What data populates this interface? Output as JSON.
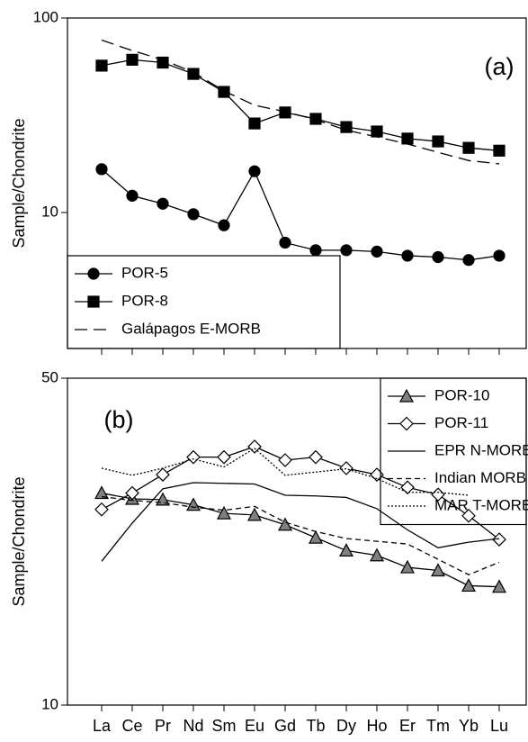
{
  "chart_data": [
    {
      "type": "line",
      "panel_label": "(a)",
      "y_label": "Sample/Chondrite",
      "yscale": "log",
      "categories": [
        null,
        null,
        null,
        null,
        null,
        null,
        null,
        null,
        null,
        null,
        null,
        null,
        null,
        null
      ],
      "ylim": [
        2,
        100
      ],
      "yticks": [
        10,
        100
      ],
      "legend": "lower left",
      "series": [
        {
          "name": "POR-5",
          "color": "#000000",
          "marker": "circle",
          "line": "solid",
          "values": [
            16.7,
            12.2,
            11.1,
            9.8,
            8.6,
            16.3,
            7.0,
            6.4,
            6.4,
            6.3,
            6.0,
            5.9,
            5.7,
            6.0
          ]
        },
        {
          "name": "POR-8",
          "color": "#000000",
          "marker": "square",
          "line": "solid",
          "values": [
            56.9,
            61,
            59,
            51.6,
            41.7,
            28.7,
            32.7,
            30.3,
            27.5,
            26.1,
            24,
            23.2,
            21.5,
            20.8
          ]
        },
        {
          "name": "Galápagos E-MORB",
          "color": "#000000",
          "marker": "none",
          "line": "longdash",
          "values": [
            77,
            68,
            61,
            52.6,
            42.2,
            35.6,
            33,
            30,
            26.5,
            24.5,
            22.5,
            20.4,
            18.5,
            17.8
          ]
        }
      ]
    },
    {
      "type": "line",
      "panel_label": "(b)",
      "y_label": "Sample/Chondrite",
      "yscale": "log",
      "categories": [
        "La",
        "Ce",
        "Pr",
        "Nd",
        "Sm",
        "Eu",
        "Gd",
        "Tb",
        "Dy",
        "Ho",
        "Er",
        "Tm",
        "Yb",
        "Lu"
      ],
      "ylim": [
        10,
        50
      ],
      "yticks": [
        10,
        50
      ],
      "legend": "upper right",
      "series": [
        {
          "name": "POR-10",
          "color": "#808080",
          "marker": "triangle",
          "line": "solid",
          "values": [
            28.4,
            27.6,
            27.5,
            26.8,
            25.7,
            25.5,
            24.3,
            22.8,
            21.4,
            20.9,
            19.7,
            19.4,
            18.0,
            17.9
          ]
        },
        {
          "name": "POR-11",
          "color": "#ffffff",
          "marker": "diamond",
          "line": "solid",
          "values": [
            26.2,
            28.4,
            31.1,
            33.9,
            33.9,
            35.7,
            33.4,
            33.9,
            32.1,
            31.1,
            29.2,
            28.2,
            25.4,
            22.6
          ]
        },
        {
          "name": "EPR N-MORB",
          "color": "#000000",
          "marker": "none",
          "line": "solid",
          "values": [
            20.3,
            24.5,
            29.0,
            29.9,
            29.8,
            29.7,
            28.1,
            28.0,
            27.8,
            26.3,
            23.7,
            21.7,
            22.3,
            22.7
          ]
        },
        {
          "name": "Indian MORB",
          "color": "#000000",
          "marker": "none",
          "line": "dashed",
          "values": [
            27.9,
            27.4,
            27.1,
            26.5,
            26.1,
            26.6,
            24.6,
            23.5,
            22.7,
            22.4,
            22.1,
            20.5,
            19.0,
            20.2
          ]
        },
        {
          "name": "MAR T-MORB",
          "color": "#000000",
          "marker": "none",
          "line": "dotted",
          "values": [
            32.1,
            31.0,
            32.1,
            33.6,
            32.3,
            35.4,
            31.0,
            31.5,
            32.0,
            30.5,
            28.5,
            28.5,
            28.1,
            null
          ]
        }
      ]
    }
  ]
}
